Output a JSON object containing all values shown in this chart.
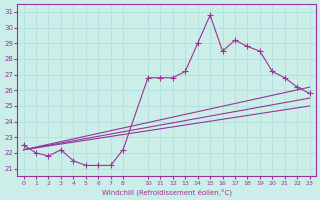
{
  "xlabel": "Windchill (Refroidissement éolien,°C)",
  "ylabel": "",
  "background_color": "#cceee8",
  "line_color": "#993399",
  "grid_color": "#aadddd",
  "xlim": [
    -0.5,
    23.5
  ],
  "ylim": [
    20.5,
    31.5
  ],
  "yticks": [
    21,
    22,
    23,
    24,
    25,
    26,
    27,
    28,
    29,
    30,
    31
  ],
  "xticks": [
    0,
    1,
    2,
    3,
    4,
    5,
    6,
    7,
    8,
    10,
    11,
    12,
    13,
    14,
    15,
    16,
    17,
    18,
    19,
    20,
    21,
    22,
    23
  ],
  "lines": [
    {
      "x": [
        0,
        1,
        2,
        3,
        4,
        5,
        6,
        7,
        8,
        10,
        11,
        12,
        13,
        14,
        15,
        16,
        17,
        18,
        19,
        20,
        21,
        22,
        23
      ],
      "y": [
        22.5,
        22.0,
        21.8,
        22.2,
        21.5,
        21.2,
        21.2,
        21.2,
        22.2,
        26.8,
        26.8,
        26.8,
        27.2,
        29.0,
        30.8,
        28.5,
        29.2,
        28.8,
        28.5,
        27.2,
        26.8,
        26.2,
        25.8
      ],
      "marker": true
    },
    {
      "x": [
        0,
        23
      ],
      "y": [
        22.2,
        26.2
      ],
      "marker": false
    },
    {
      "x": [
        0,
        23
      ],
      "y": [
        22.2,
        25.5
      ],
      "marker": false
    },
    {
      "x": [
        0,
        23
      ],
      "y": [
        22.2,
        25.0
      ],
      "marker": false
    }
  ]
}
